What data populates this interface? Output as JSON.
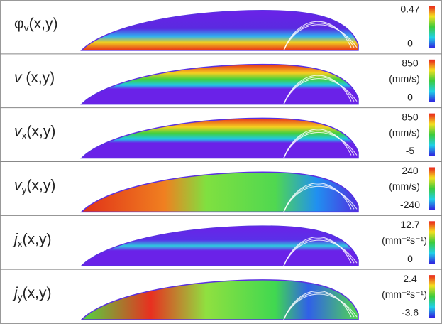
{
  "panels": [
    {
      "symbol": "φ",
      "subscript": "v",
      "args": "(x,y)",
      "max": 0.47,
      "min": 0
    },
    {
      "symbol": "v",
      "args": " (x,y)",
      "max": 850,
      "unit": "(mm/s)",
      "min": 0
    },
    {
      "symbol": "v",
      "subscript": "x",
      "args": "(x,y)",
      "max": 850,
      "unit": "(mm/s)",
      "min": -5
    },
    {
      "symbol": "v",
      "subscript": "y",
      "args": "(x,y)",
      "max": 240,
      "unit": "(mm/s)",
      "min": -240
    },
    {
      "symbol": "j",
      "subscript": "x",
      "args": "(x,y)",
      "max": 12.7,
      "unit": "(mm⁻²s⁻¹)",
      "min": 0
    },
    {
      "symbol": "j",
      "subscript": "y",
      "args": "(x,y)",
      "max": 2.4,
      "unit": "(mm⁻²s⁻¹)",
      "min": -3.6
    }
  ]
}
